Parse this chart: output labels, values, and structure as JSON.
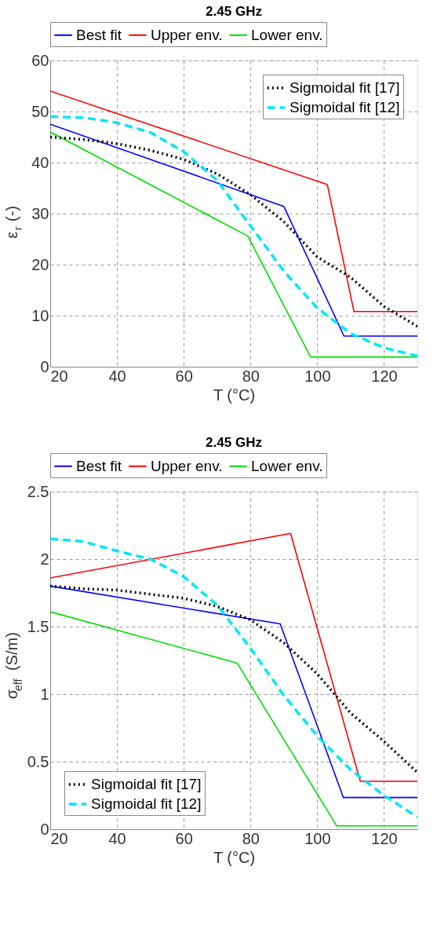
{
  "chart_data": [
    {
      "type": "line",
      "title": "2.45 GHz",
      "xlabel": "T (°C)",
      "ylabel": "ε$_{r}$ (-)",
      "xlim": [
        20,
        130
      ],
      "xticks": [
        20,
        40,
        60,
        80,
        100,
        120
      ],
      "ylim": [
        0,
        60
      ],
      "yticks": [
        0,
        10,
        20,
        30,
        40,
        50,
        60
      ],
      "grid": true,
      "legend": "top",
      "line_style": "solid",
      "series": [
        {
          "name": "Best fit",
          "color": "#0000ff",
          "x": [
            20,
            90,
            108,
            130
          ],
          "values": [
            47.5,
            31.4,
            6.0,
            6.0
          ]
        },
        {
          "name": "Upper env.",
          "color": "#ff0000",
          "x": [
            20,
            103,
            111,
            130
          ],
          "values": [
            54,
            35.7,
            10.8,
            10.8
          ]
        },
        {
          "name": "Lower env.",
          "color": "#00dd00",
          "x": [
            20,
            79.2,
            98,
            130
          ],
          "values": [
            46,
            25.6,
            1.9,
            1.9
          ]
        },
        {
          "name": "Sigmoidal fit [17]",
          "color": "#000000",
          "line_style": "dotted",
          "x": [
            20,
            30,
            40,
            50,
            60,
            70,
            80,
            90,
            100,
            110,
            120,
            130
          ],
          "values": [
            45,
            44.5,
            43.7,
            42.4,
            40.6,
            37.8,
            33.7,
            28.4,
            21.5,
            17.5,
            11.8,
            7.9
          ]
        },
        {
          "name": "Sigmoidal fit [12]",
          "color": "#00e5ff",
          "line_style": "dashed",
          "x": [
            20,
            30,
            40,
            50,
            60,
            70,
            80,
            90,
            100,
            110,
            120,
            130
          ],
          "values": [
            49,
            48.8,
            47.8,
            45.9,
            42.1,
            36.5,
            27.6,
            18.7,
            11.5,
            6.5,
            3.7,
            2.1
          ]
        }
      ]
    },
    {
      "type": "line",
      "title": "2.45 GHz",
      "xlabel": "T (°C)",
      "ylabel": "σ$_{eff}$ (S/m)",
      "xlim": [
        20,
        130
      ],
      "xticks": [
        20,
        40,
        60,
        80,
        100,
        120
      ],
      "ylim": [
        0,
        2.5
      ],
      "yticks": [
        0,
        0.5,
        1,
        1.5,
        2,
        2.5
      ],
      "grid": true,
      "legend": "top",
      "line_style": "solid",
      "series": [
        {
          "name": "Best fit",
          "color": "#0000ff",
          "x": [
            20,
            88.9,
            107.8,
            130
          ],
          "values": [
            1.8,
            1.52,
            0.235,
            0.235
          ]
        },
        {
          "name": "Upper env.",
          "color": "#ff0000",
          "x": [
            20,
            92,
            112.9,
            130
          ],
          "values": [
            1.86,
            2.19,
            0.355,
            0.355
          ]
        },
        {
          "name": "Lower env.",
          "color": "#00dd00",
          "x": [
            20,
            76,
            105.8,
            130
          ],
          "values": [
            1.61,
            1.23,
            0.025,
            0.025
          ]
        },
        {
          "name": "Sigmoidal fit [17]",
          "color": "#000000",
          "line_style": "dotted",
          "x": [
            20,
            30,
            40,
            50,
            60,
            70,
            80,
            90,
            100,
            110,
            120,
            130
          ],
          "values": [
            1.8,
            1.78,
            1.77,
            1.74,
            1.71,
            1.65,
            1.55,
            1.38,
            1.15,
            0.86,
            0.65,
            0.42
          ]
        },
        {
          "name": "Sigmoidal fit [12]",
          "color": "#00e5ff",
          "line_style": "dashed",
          "x": [
            20,
            30,
            40,
            50,
            60,
            70,
            80,
            90,
            100,
            110,
            120,
            130
          ],
          "values": [
            2.15,
            2.13,
            2.06,
            2.0,
            1.87,
            1.66,
            1.34,
            0.99,
            0.69,
            0.44,
            0.25,
            0.09
          ]
        }
      ]
    }
  ]
}
